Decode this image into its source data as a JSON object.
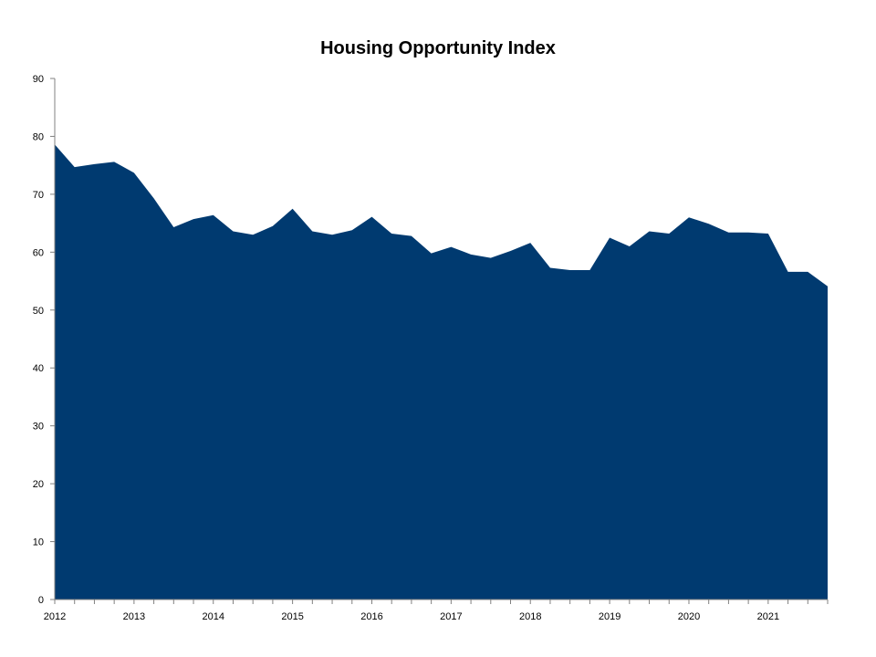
{
  "chart_data": {
    "type": "area",
    "title": "Housing Opportunity Index",
    "xlabel": "",
    "ylabel": "",
    "ylim": [
      0,
      90
    ],
    "yticks": [
      0,
      10,
      20,
      30,
      40,
      50,
      60,
      70,
      80,
      90
    ],
    "xtick_labels": [
      "2012",
      "2013",
      "2014",
      "2015",
      "2016",
      "2017",
      "2018",
      "2019",
      "2020",
      "2021"
    ],
    "grid": false,
    "legend": "none",
    "fill_color": "#003A70",
    "series": [
      {
        "values": [
          78.6,
          74.7,
          75.2,
          75.6,
          73.7,
          69.3,
          64.3,
          65.7,
          66.4,
          63.6,
          63.0,
          64.5,
          67.5,
          63.6,
          63.0,
          63.8,
          66.1,
          63.2,
          62.8,
          59.8,
          60.9,
          59.6,
          59.0,
          60.2,
          61.6,
          57.3,
          56.9,
          56.9,
          62.5,
          61.0,
          63.6,
          63.2,
          66.0,
          64.9,
          63.4,
          63.4,
          63.2,
          56.6,
          56.6,
          54.1
        ]
      }
    ]
  }
}
